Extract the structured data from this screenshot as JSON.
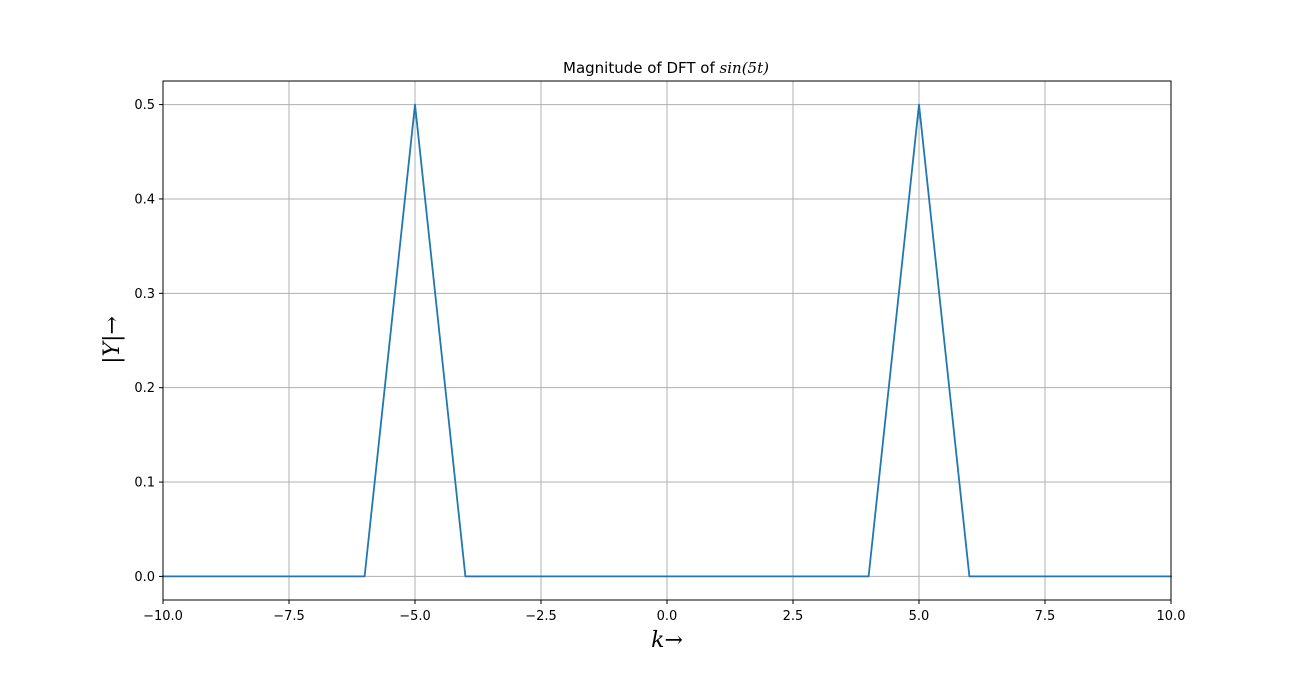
{
  "chart_data": {
    "type": "line",
    "title_prefix": "Magnitude of DFT of ",
    "title_math": "sin(5t)",
    "xlabel": "k→",
    "ylabel": "|Y|→",
    "xlim": [
      -10,
      10
    ],
    "ylim": [
      -0.025,
      0.525
    ],
    "xticks": [
      -10,
      -7.5,
      -5,
      -2.5,
      0,
      2.5,
      5,
      7.5,
      10
    ],
    "xtick_labels": [
      "−10.0",
      "−7.5",
      "−5.0",
      "−2.5",
      "0.0",
      "2.5",
      "5.0",
      "7.5",
      "10.0"
    ],
    "yticks": [
      0,
      0.1,
      0.2,
      0.3,
      0.4,
      0.5
    ],
    "ytick_labels": [
      "0.0",
      "0.1",
      "0.2",
      "0.3",
      "0.4",
      "0.5"
    ],
    "grid": true,
    "series": [
      {
        "color": "#1f77b4",
        "x": [
          -10,
          -6,
          -5,
          -4,
          4,
          5,
          6,
          10
        ],
        "y": [
          0,
          0,
          0.5,
          0,
          0,
          0.5,
          0,
          0
        ]
      }
    ]
  }
}
